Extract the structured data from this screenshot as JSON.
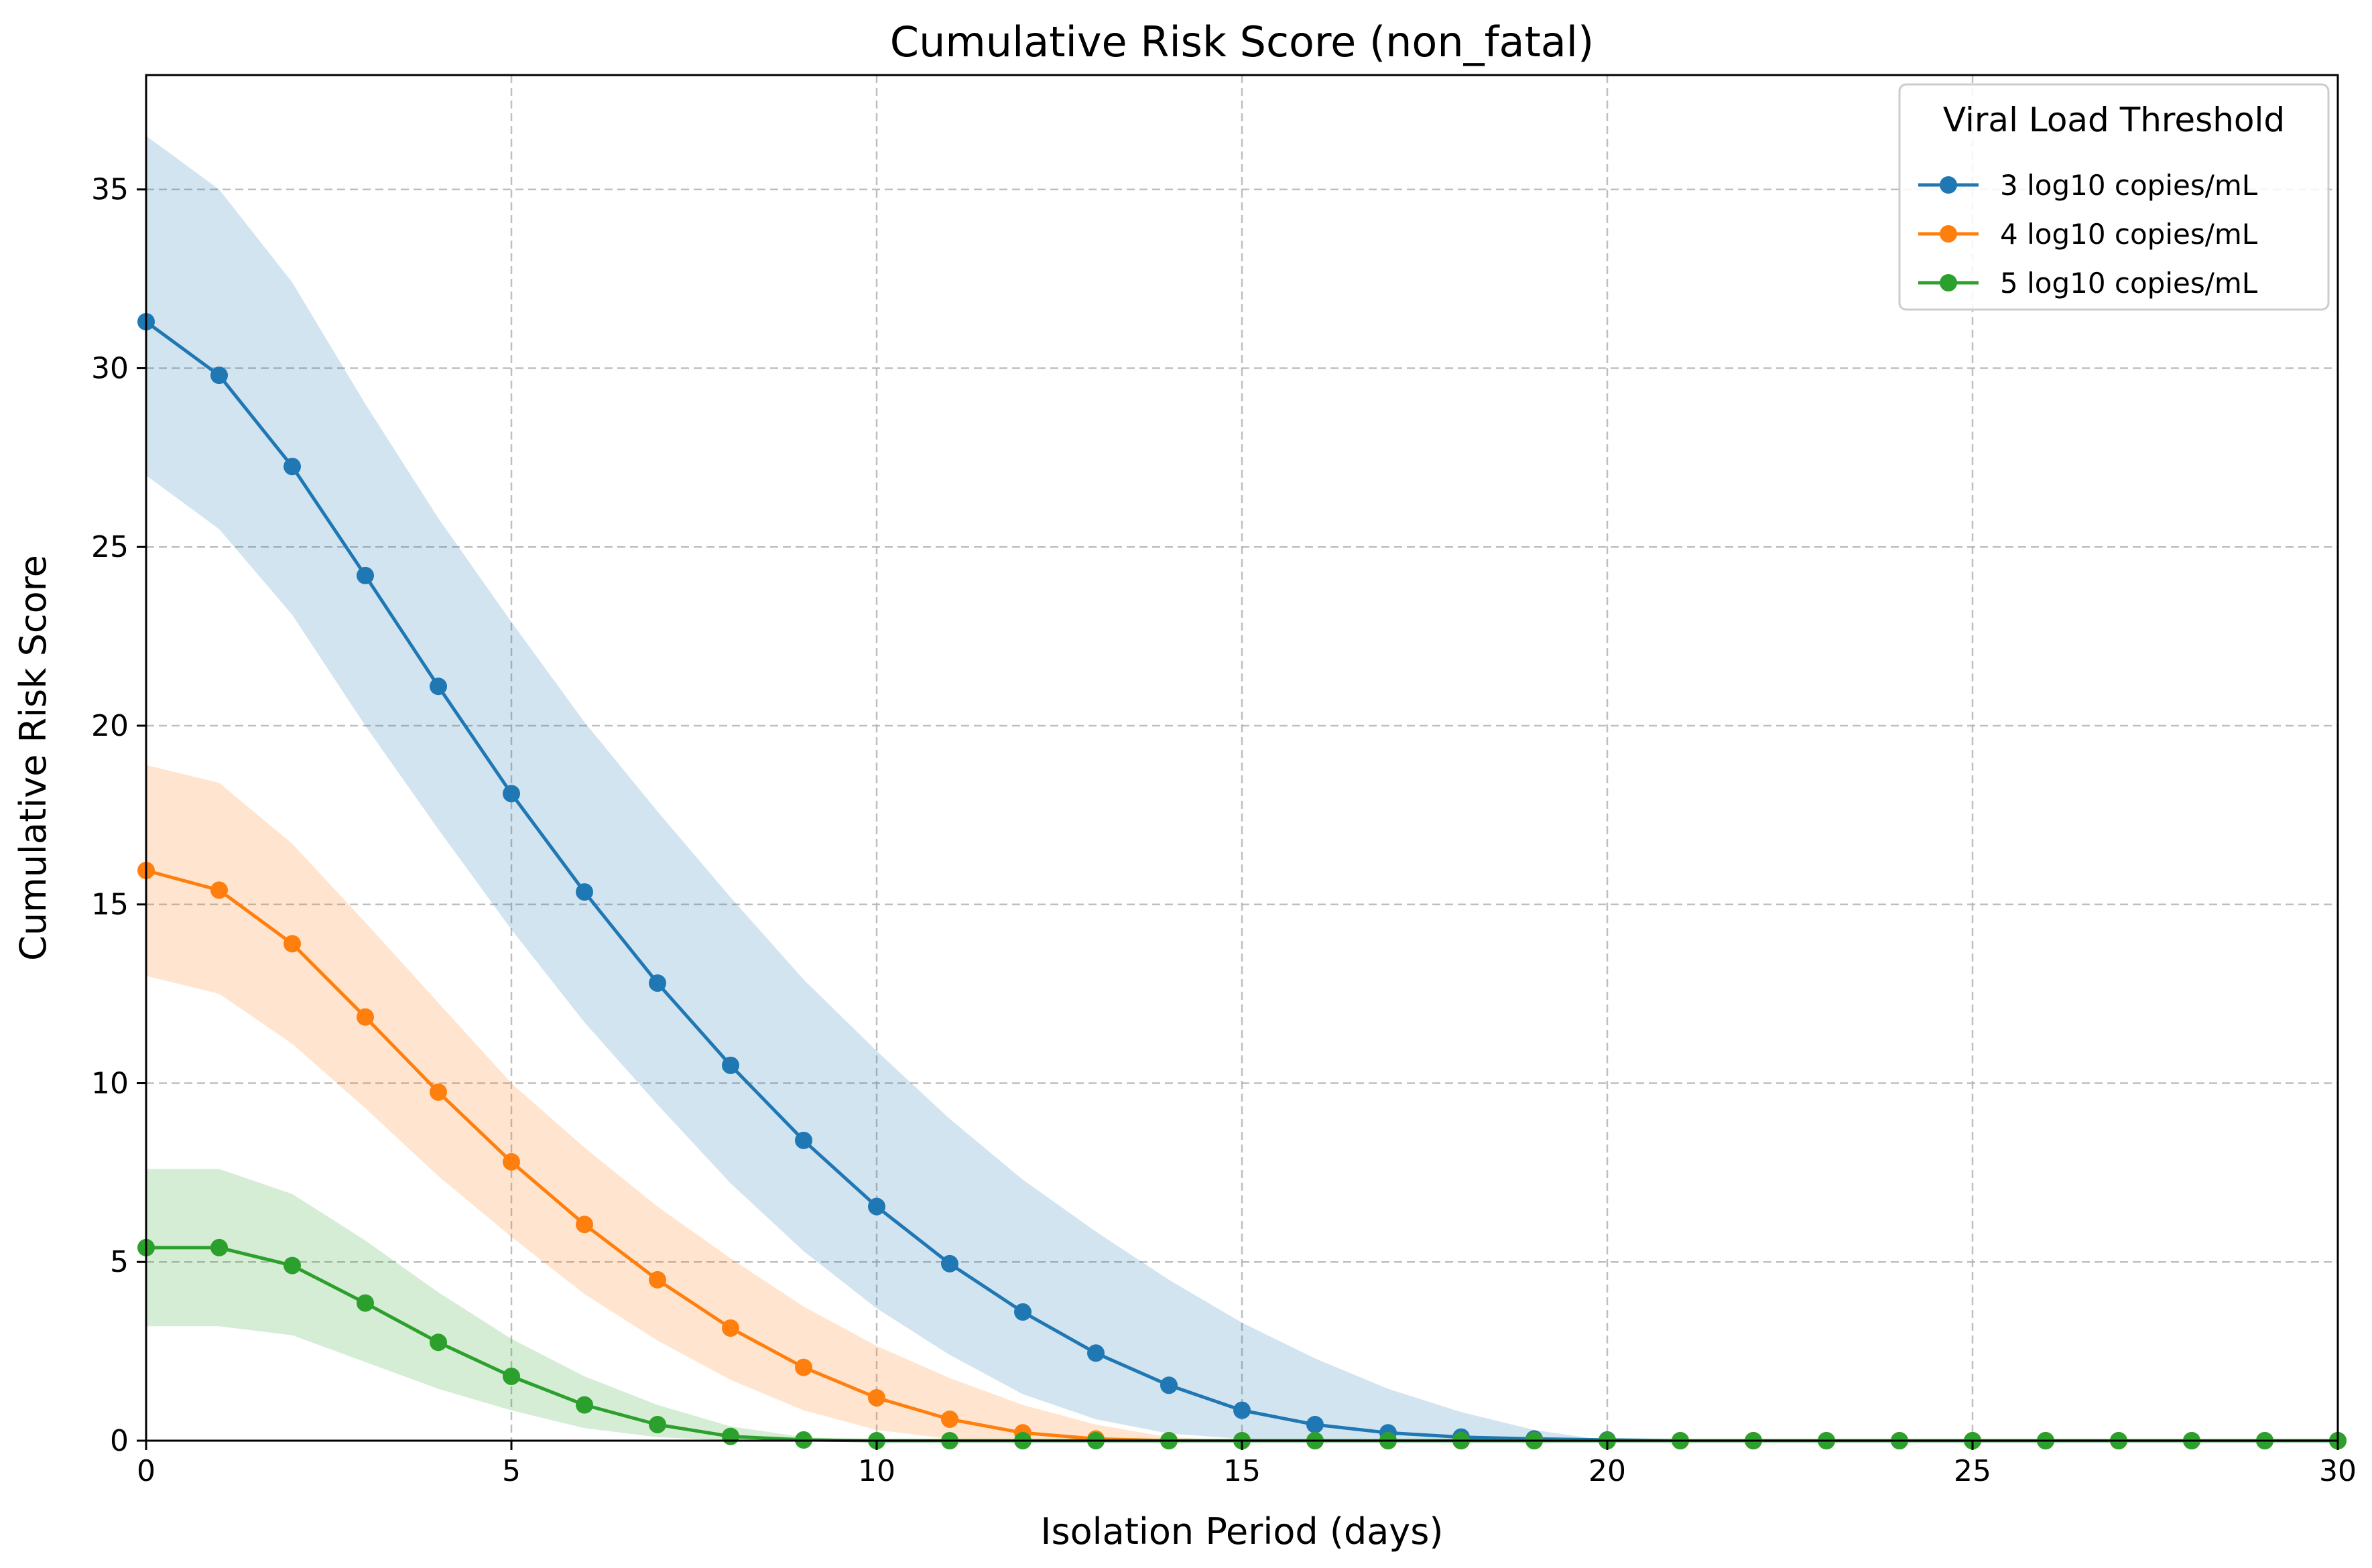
{
  "chart_data": {
    "type": "line",
    "title": "Cumulative Risk Score (non_fatal)",
    "xlabel": "Isolation Period (days)",
    "ylabel": "Cumulative Risk Score",
    "xlim": [
      0,
      30
    ],
    "ylim": [
      0,
      38.2
    ],
    "xticks": [
      0,
      5,
      10,
      15,
      20,
      25,
      30
    ],
    "yticks": [
      0,
      5,
      10,
      15,
      20,
      25,
      30,
      35
    ],
    "grid": true,
    "legend": {
      "title": "Viral Load Threshold",
      "placement": "top-right"
    },
    "x": [
      0,
      1,
      2,
      3,
      4,
      5,
      6,
      7,
      8,
      9,
      10,
      11,
      12,
      13,
      14,
      15,
      16,
      17,
      18,
      19,
      20,
      21,
      22,
      23,
      24,
      25,
      26,
      27,
      28,
      29,
      30
    ],
    "series": [
      {
        "name": "3 log10 copies/mL",
        "color": "#1f77b4",
        "values": [
          31.3,
          29.8,
          27.25,
          24.2,
          21.1,
          18.1,
          15.35,
          12.8,
          10.5,
          8.4,
          6.55,
          4.95,
          3.6,
          2.45,
          1.55,
          0.85,
          0.45,
          0.22,
          0.1,
          0.05,
          0.02,
          0,
          0,
          0,
          0,
          0,
          0,
          0,
          0,
          0,
          0
        ],
        "lower": [
          27.0,
          25.5,
          23.1,
          20.0,
          17.1,
          14.3,
          11.7,
          9.4,
          7.2,
          5.3,
          3.7,
          2.4,
          1.3,
          0.6,
          0.2,
          0.05,
          0,
          0,
          0,
          0,
          0,
          0,
          0,
          0,
          0,
          0,
          0,
          0,
          0,
          0,
          0
        ],
        "upper": [
          36.5,
          35.0,
          32.4,
          29.0,
          25.8,
          22.9,
          20.1,
          17.6,
          15.2,
          12.9,
          10.9,
          9.0,
          7.3,
          5.85,
          4.5,
          3.3,
          2.3,
          1.45,
          0.8,
          0.3,
          0,
          0,
          0,
          0,
          0,
          0,
          0,
          0,
          0,
          0,
          0
        ]
      },
      {
        "name": "4 log10 copies/mL",
        "color": "#ff7f0e",
        "values": [
          15.95,
          15.4,
          13.9,
          11.85,
          9.75,
          7.8,
          6.05,
          4.5,
          3.15,
          2.05,
          1.2,
          0.6,
          0.22,
          0.05,
          0,
          0,
          0,
          0,
          0,
          0,
          0,
          0,
          0,
          0,
          0,
          0,
          0,
          0,
          0,
          0,
          0
        ],
        "lower": [
          13.0,
          12.5,
          11.1,
          9.3,
          7.4,
          5.7,
          4.1,
          2.8,
          1.7,
          0.85,
          0.3,
          0.05,
          0,
          0,
          0,
          0,
          0,
          0,
          0,
          0,
          0,
          0,
          0,
          0,
          0,
          0,
          0,
          0,
          0,
          0,
          0
        ],
        "upper": [
          18.9,
          18.4,
          16.7,
          14.5,
          12.25,
          10.0,
          8.2,
          6.55,
          5.1,
          3.75,
          2.65,
          1.75,
          1.0,
          0.45,
          0.1,
          0,
          0,
          0,
          0,
          0,
          0,
          0,
          0,
          0,
          0,
          0,
          0,
          0,
          0,
          0,
          0
        ]
      },
      {
        "name": "5 log10 copies/mL",
        "color": "#2ca02c",
        "values": [
          5.4,
          5.4,
          4.9,
          3.85,
          2.75,
          1.8,
          1.0,
          0.45,
          0.12,
          0.02,
          0,
          0,
          0,
          0,
          0,
          0,
          0,
          0,
          0,
          0,
          0,
          0,
          0,
          0,
          0,
          0,
          0,
          0,
          0,
          0,
          0
        ],
        "lower": [
          3.2,
          3.2,
          2.95,
          2.2,
          1.45,
          0.85,
          0.35,
          0.1,
          0,
          0,
          0,
          0,
          0,
          0,
          0,
          0,
          0,
          0,
          0,
          0,
          0,
          0,
          0,
          0,
          0,
          0,
          0,
          0,
          0,
          0,
          0
        ],
        "upper": [
          7.6,
          7.6,
          6.9,
          5.6,
          4.15,
          2.85,
          1.8,
          1.0,
          0.4,
          0.1,
          0,
          0,
          0,
          0,
          0,
          0,
          0,
          0,
          0,
          0,
          0,
          0,
          0,
          0,
          0,
          0,
          0,
          0,
          0,
          0,
          0
        ]
      }
    ]
  }
}
